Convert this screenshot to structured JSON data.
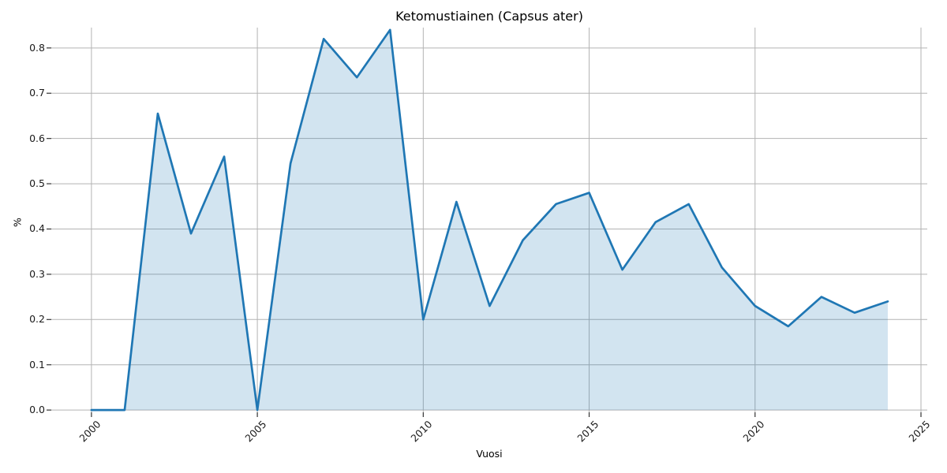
{
  "chart_data": {
    "type": "area",
    "title": "Ketomustiainen (Capsus ater)",
    "xlabel": "Vuosi",
    "ylabel": "%",
    "x": [
      2000,
      2001,
      2002,
      2003,
      2004,
      2005,
      2006,
      2007,
      2008,
      2009,
      2010,
      2011,
      2012,
      2013,
      2014,
      2015,
      2016,
      2017,
      2018,
      2019,
      2020,
      2021,
      2022,
      2023,
      2024
    ],
    "values": [
      0.0,
      0.0,
      0.655,
      0.39,
      0.56,
      0.0,
      0.545,
      0.82,
      0.735,
      0.84,
      0.2,
      0.46,
      0.23,
      0.375,
      0.455,
      0.48,
      0.31,
      0.415,
      0.455,
      0.315,
      0.23,
      0.185,
      0.25,
      0.215,
      0.24
    ],
    "series_name": "Ketomustiainen (Capsus ater)",
    "x_ticks": [
      2000,
      2005,
      2010,
      2015,
      2020,
      2025
    ],
    "x_tick_labels": [
      "2000",
      "2005",
      "2010",
      "2015",
      "2020",
      "2025"
    ],
    "y_ticks": [
      0.0,
      0.1,
      0.2,
      0.3,
      0.4,
      0.5,
      0.6,
      0.7,
      0.8
    ],
    "y_tick_labels": [
      "0.0",
      "0.1",
      "0.2",
      "0.3",
      "0.4",
      "0.5",
      "0.6",
      "0.7",
      "0.8"
    ],
    "x_range": [
      1998.79,
      2025.19
    ],
    "y_range": [
      -0.005,
      0.845
    ],
    "grid": true,
    "legend": false,
    "fill_baseline": 0,
    "line_color": "#1f77b4",
    "fill_color": "#1f77b4",
    "fill_opacity": 0.2,
    "grid_color": "#b3b3b3",
    "tick_color": "#333333",
    "text_color": "#1a1a1a",
    "background_color": "#ffffff"
  }
}
